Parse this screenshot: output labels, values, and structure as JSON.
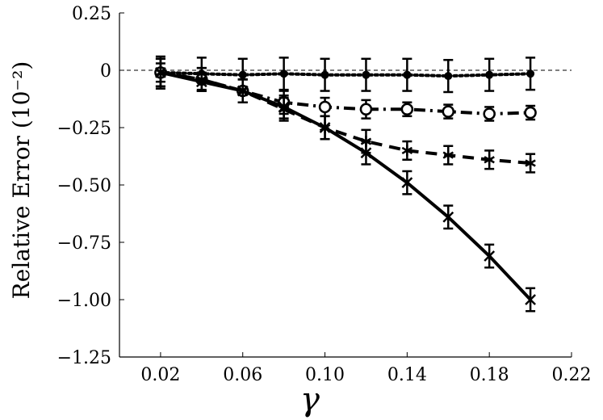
{
  "chart_data": {
    "type": "line",
    "xlabel": "γ",
    "ylabel": "Relative Error (10⁻²)",
    "xlim": [
      0.0,
      0.22
    ],
    "ylim": [
      -1.25,
      0.25
    ],
    "x_ticks": [
      0.02,
      0.06,
      0.1,
      0.14,
      0.18,
      0.22
    ],
    "x_tick_labels": [
      "0.02",
      "0.06",
      "0.10",
      "0.14",
      "0.18",
      "0.22"
    ],
    "y_ticks": [
      0.25,
      0,
      -0.25,
      -0.5,
      -0.75,
      -1.0,
      -1.25
    ],
    "y_tick_labels": [
      "0.25",
      "0",
      "−0.25",
      "−0.50",
      "−0.75",
      "−1.00",
      "−1.25"
    ],
    "reference_line": 0,
    "grid": false,
    "x": [
      0.02,
      0.04,
      0.06,
      0.08,
      0.1,
      0.12,
      0.14,
      0.16,
      0.18,
      0.2
    ],
    "series": [
      {
        "style": "dotted",
        "marker": "filled-circle",
        "values": [
          -0.01,
          -0.015,
          -0.02,
          -0.015,
          -0.02,
          -0.02,
          -0.02,
          -0.025,
          -0.02,
          -0.015
        ],
        "errors": [
          0.07,
          0.07,
          0.07,
          0.07,
          0.07,
          0.07,
          0.07,
          0.07,
          0.07,
          0.07
        ]
      },
      {
        "style": "dash-dot",
        "marker": "open-circle",
        "values": [
          -0.01,
          -0.04,
          -0.09,
          -0.14,
          -0.16,
          -0.17,
          -0.17,
          -0.18,
          -0.19,
          -0.185
        ],
        "errors": [
          0.06,
          0.05,
          0.05,
          0.05,
          0.04,
          0.04,
          0.03,
          0.03,
          0.03,
          0.03
        ]
      },
      {
        "style": "dashed",
        "marker": "asterisk",
        "values": [
          -0.01,
          -0.04,
          -0.09,
          -0.17,
          -0.25,
          -0.31,
          -0.35,
          -0.37,
          -0.39,
          -0.405
        ],
        "errors": [
          0.06,
          0.05,
          0.05,
          0.05,
          0.05,
          0.05,
          0.04,
          0.04,
          0.04,
          0.04
        ]
      },
      {
        "style": "solid",
        "marker": "x",
        "values": [
          -0.01,
          -0.05,
          -0.09,
          -0.16,
          -0.25,
          -0.36,
          -0.49,
          -0.64,
          -0.81,
          -1.0
        ],
        "errors": [
          0.04,
          0.04,
          0.05,
          0.05,
          0.05,
          0.05,
          0.05,
          0.05,
          0.05,
          0.05
        ]
      }
    ]
  }
}
